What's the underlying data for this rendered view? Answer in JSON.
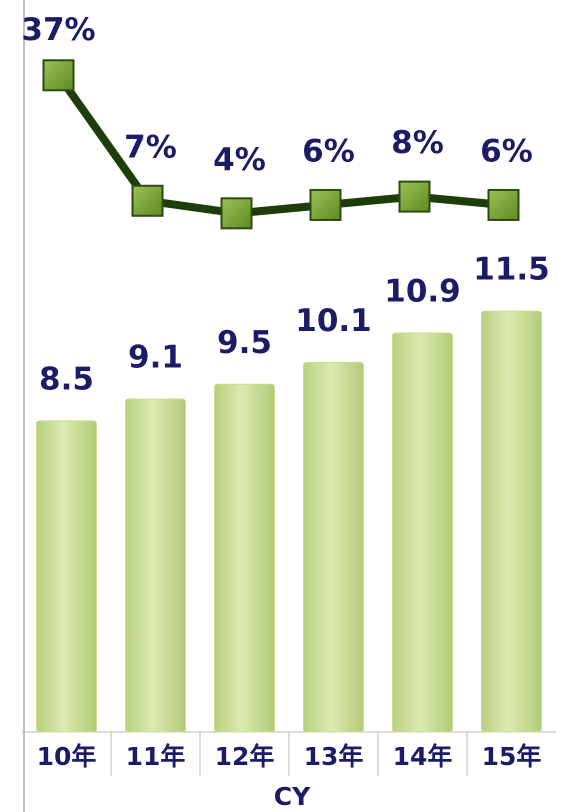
{
  "chart_data": {
    "type": "bar",
    "xlabel": "CY",
    "categories": [
      "10年",
      "11年",
      "12年",
      "13年",
      "14年",
      "15年"
    ],
    "ylim": [
      0,
      20
    ],
    "y2lim": [
      -120,
      55
    ],
    "series": [
      {
        "type": "bar",
        "color": "#c8dc94",
        "values": [
          8.5,
          9.1,
          9.5,
          10.1,
          10.9,
          11.5
        ]
      },
      {
        "type": "line",
        "axis": "y2",
        "color": "#1e3d0a",
        "values": [
          37,
          7,
          4,
          6,
          8,
          6
        ],
        "value_labels": [
          "37%",
          "7%",
          "4%",
          "6%",
          "8%",
          "6%"
        ]
      }
    ]
  }
}
